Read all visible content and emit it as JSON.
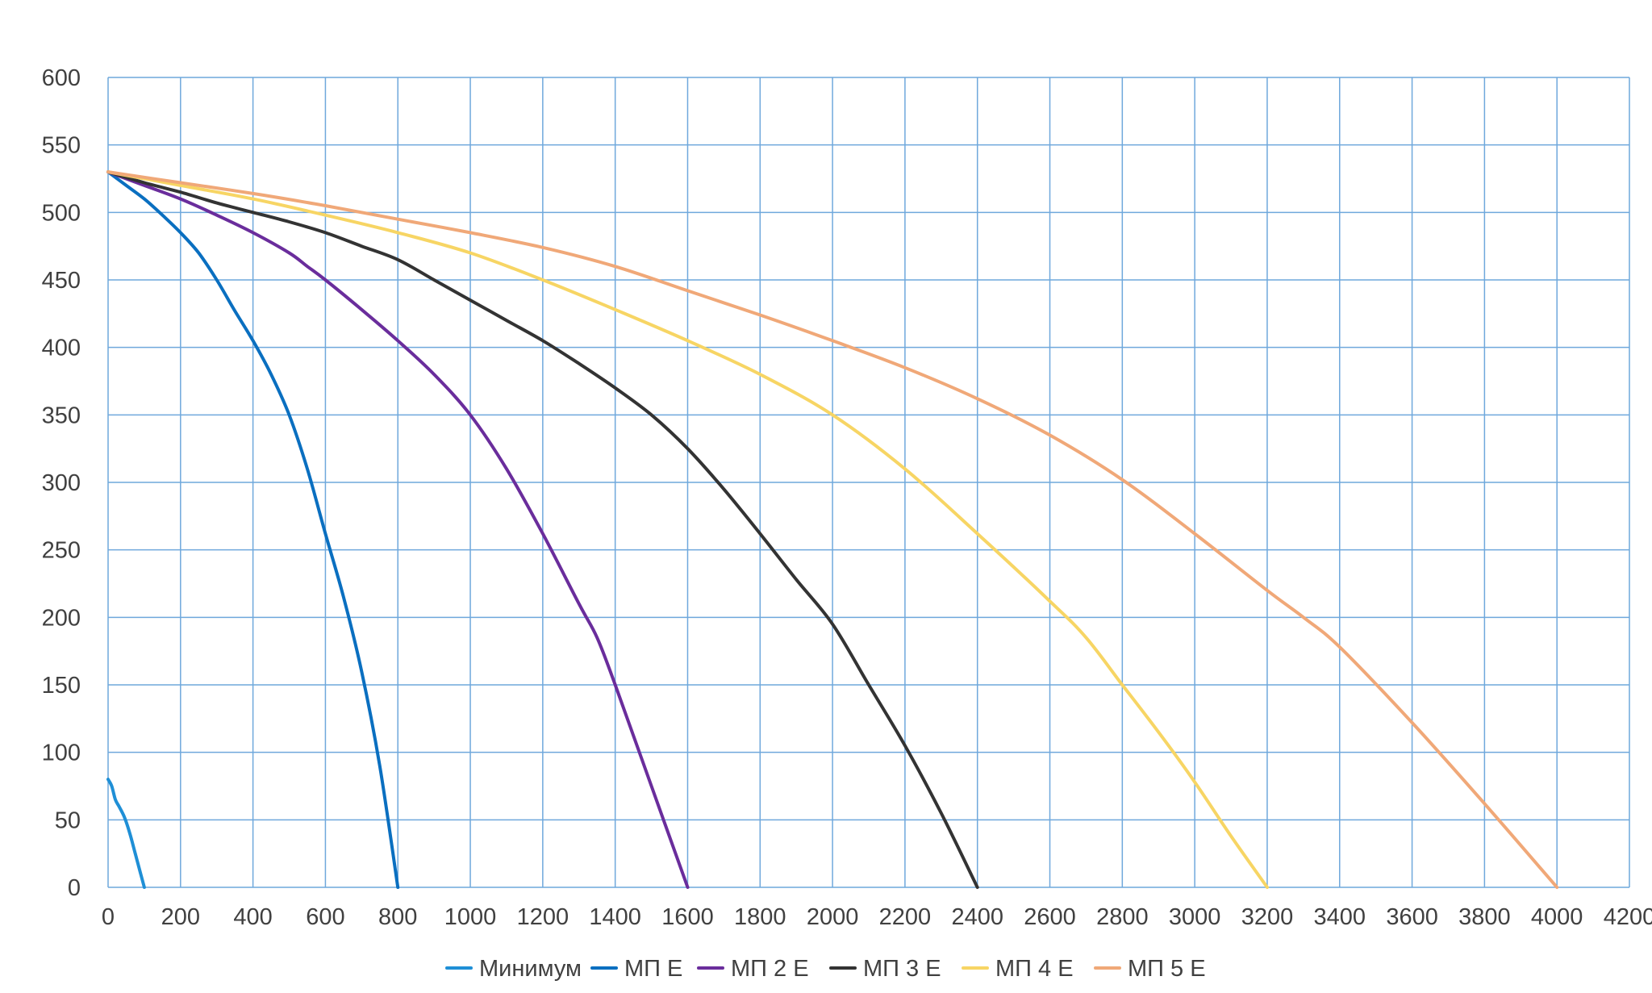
{
  "chart_data": {
    "type": "line",
    "title": "",
    "xlabel": "",
    "ylabel": "",
    "xlim": [
      0,
      4200
    ],
    "ylim": [
      0,
      600
    ],
    "x_ticks": [
      0,
      200,
      400,
      600,
      800,
      1000,
      1200,
      1400,
      1600,
      1800,
      2000,
      2200,
      2400,
      2600,
      2800,
      3000,
      3200,
      3400,
      3600,
      3800,
      4000,
      4200
    ],
    "y_ticks": [
      0,
      50,
      100,
      150,
      200,
      250,
      300,
      350,
      400,
      450,
      500,
      550,
      600
    ],
    "x_tick_labels": [
      "0",
      "200",
      "400",
      "600",
      "800",
      "1000",
      "1200",
      "1400",
      "1600",
      "1800",
      "2000",
      "2200",
      "2400",
      "2600",
      "2800",
      "3000",
      "3200",
      "3400",
      "3600",
      "3800",
      "4000",
      "4200"
    ],
    "y_tick_labels": [
      "0",
      "50",
      "100",
      "150",
      "200",
      "250",
      "300",
      "350",
      "400",
      "450",
      "500",
      "550",
      "600"
    ],
    "grid": true,
    "legend_position": "bottom",
    "series": [
      {
        "name": "Минимум",
        "color": "#1f8fd6",
        "points": [
          [
            0,
            80
          ],
          [
            10,
            75
          ],
          [
            20,
            65
          ],
          [
            30,
            60
          ],
          [
            45,
            52
          ],
          [
            60,
            40
          ],
          [
            75,
            25
          ],
          [
            90,
            10
          ],
          [
            100,
            0
          ]
        ]
      },
      {
        "name": "МП Е",
        "color": "#0a6fc0",
        "points": [
          [
            0,
            530
          ],
          [
            50,
            520
          ],
          [
            100,
            510
          ],
          [
            150,
            498
          ],
          [
            200,
            485
          ],
          [
            250,
            470
          ],
          [
            300,
            450
          ],
          [
            350,
            427
          ],
          [
            400,
            405
          ],
          [
            450,
            380
          ],
          [
            500,
            350
          ],
          [
            550,
            310
          ],
          [
            600,
            262
          ],
          [
            650,
            215
          ],
          [
            700,
            160
          ],
          [
            750,
            90
          ],
          [
            800,
            0
          ]
        ]
      },
      {
        "name": "МП 2 Е",
        "color": "#6a2d9c",
        "points": [
          [
            0,
            530
          ],
          [
            100,
            520
          ],
          [
            200,
            510
          ],
          [
            300,
            498
          ],
          [
            400,
            485
          ],
          [
            500,
            470
          ],
          [
            550,
            460
          ],
          [
            600,
            450
          ],
          [
            700,
            428
          ],
          [
            800,
            405
          ],
          [
            900,
            380
          ],
          [
            1000,
            350
          ],
          [
            1100,
            310
          ],
          [
            1200,
            262
          ],
          [
            1300,
            210
          ],
          [
            1350,
            185
          ],
          [
            1400,
            150
          ],
          [
            1500,
            75
          ],
          [
            1600,
            0
          ]
        ]
      },
      {
        "name": "МП 3 Е",
        "color": "#333333",
        "points": [
          [
            0,
            530
          ],
          [
            100,
            522
          ],
          [
            200,
            515
          ],
          [
            300,
            507
          ],
          [
            400,
            500
          ],
          [
            500,
            493
          ],
          [
            600,
            485
          ],
          [
            700,
            475
          ],
          [
            800,
            465
          ],
          [
            900,
            450
          ],
          [
            1000,
            435
          ],
          [
            1100,
            420
          ],
          [
            1200,
            405
          ],
          [
            1300,
            388
          ],
          [
            1400,
            370
          ],
          [
            1500,
            350
          ],
          [
            1600,
            325
          ],
          [
            1700,
            295
          ],
          [
            1800,
            262
          ],
          [
            1900,
            228
          ],
          [
            2000,
            195
          ],
          [
            2100,
            150
          ],
          [
            2200,
            105
          ],
          [
            2300,
            55
          ],
          [
            2400,
            0
          ]
        ]
      },
      {
        "name": "МП 4 Е",
        "color": "#f7d564",
        "points": [
          [
            0,
            530
          ],
          [
            200,
            520
          ],
          [
            400,
            510
          ],
          [
            600,
            498
          ],
          [
            800,
            485
          ],
          [
            1000,
            470
          ],
          [
            1200,
            450
          ],
          [
            1400,
            428
          ],
          [
            1600,
            405
          ],
          [
            1800,
            380
          ],
          [
            2000,
            350
          ],
          [
            2200,
            310
          ],
          [
            2400,
            262
          ],
          [
            2600,
            212
          ],
          [
            2700,
            185
          ],
          [
            2800,
            150
          ],
          [
            2900,
            115
          ],
          [
            3000,
            78
          ],
          [
            3100,
            38
          ],
          [
            3200,
            0
          ]
        ]
      },
      {
        "name": "МП 5 Е",
        "color": "#f0a878",
        "points": [
          [
            0,
            530
          ],
          [
            200,
            522
          ],
          [
            400,
            514
          ],
          [
            600,
            505
          ],
          [
            800,
            495
          ],
          [
            1000,
            485
          ],
          [
            1200,
            474
          ],
          [
            1400,
            460
          ],
          [
            1600,
            442
          ],
          [
            1800,
            424
          ],
          [
            2000,
            405
          ],
          [
            2200,
            385
          ],
          [
            2400,
            362
          ],
          [
            2600,
            335
          ],
          [
            2800,
            302
          ],
          [
            3000,
            262
          ],
          [
            3200,
            220
          ],
          [
            3300,
            200
          ],
          [
            3400,
            178
          ],
          [
            3600,
            122
          ],
          [
            3800,
            62
          ],
          [
            4000,
            0
          ]
        ]
      }
    ]
  }
}
